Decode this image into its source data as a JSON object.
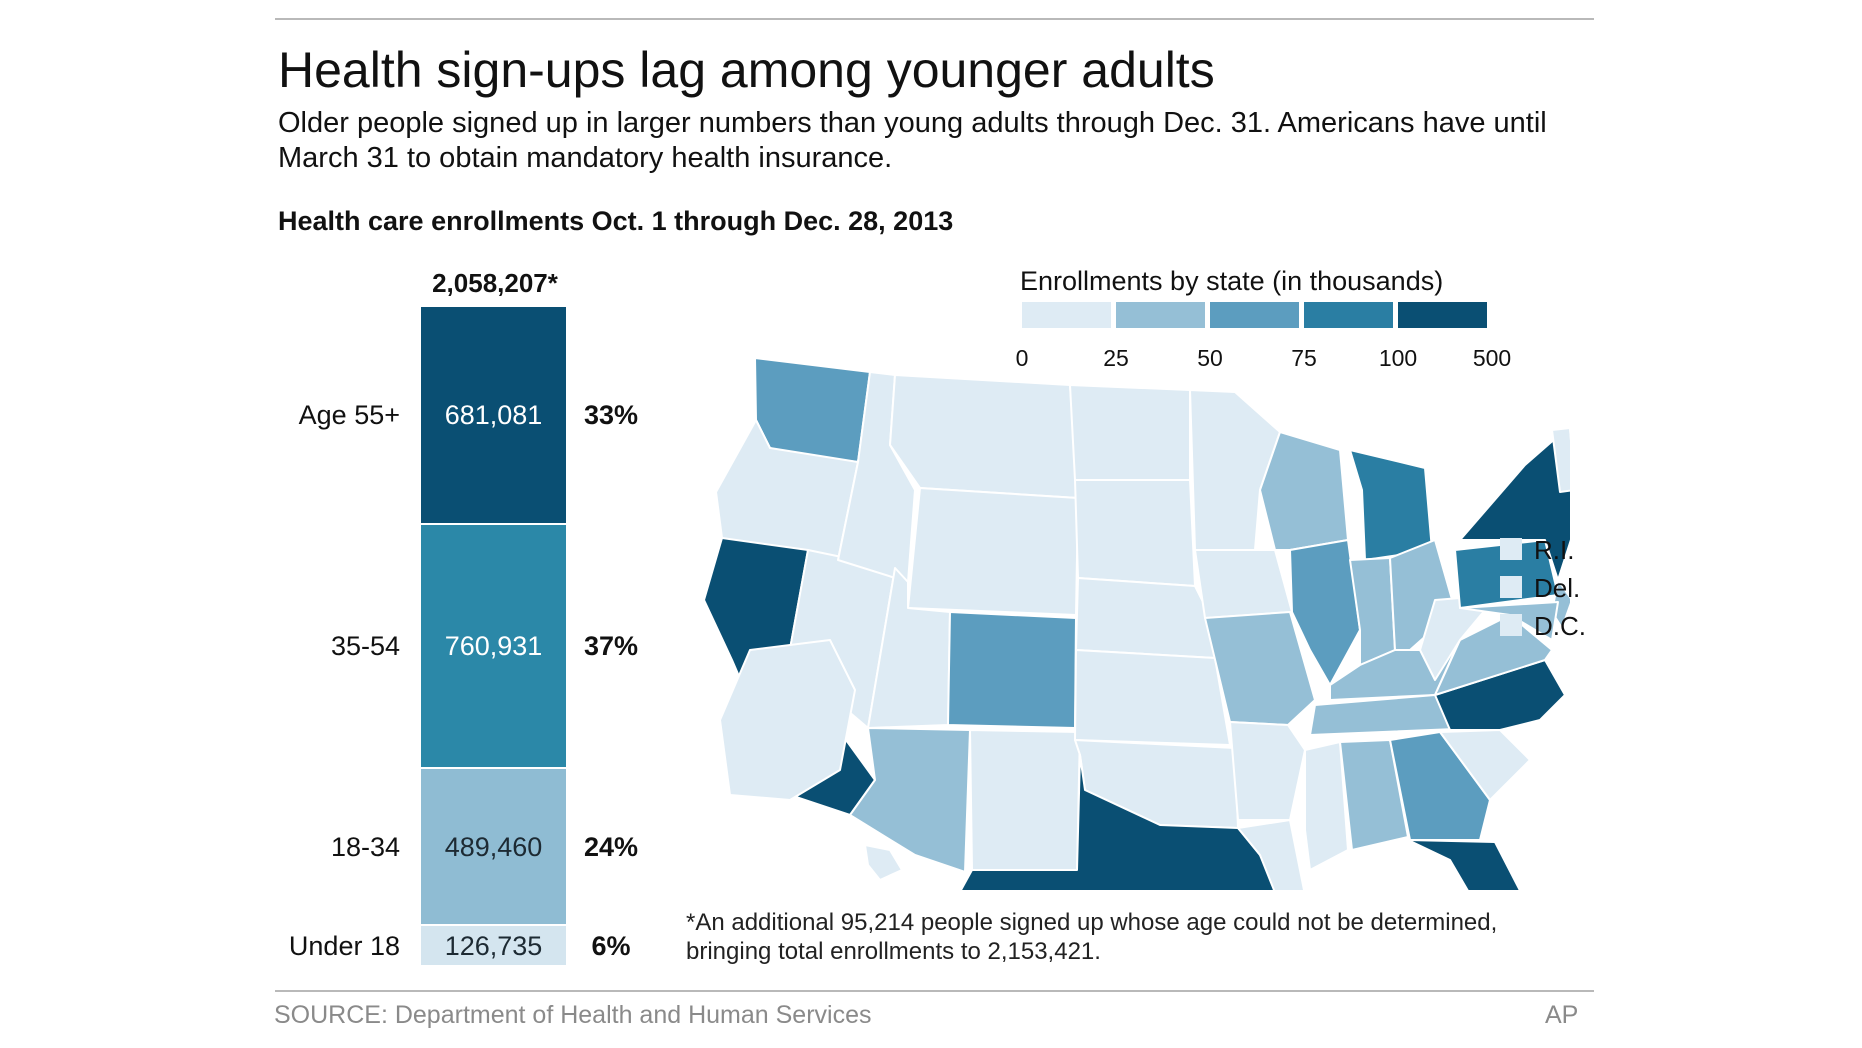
{
  "title": "Health sign-ups lag among younger adults",
  "subtitle": "Older people signed up in larger numbers than young adults through Dec. 31. Americans have until March 31 to obtain mandatory health insurance.",
  "chart_data": [
    {
      "type": "bar",
      "title": "Health care enrollments Oct. 1 through Dec. 28, 2013",
      "stacked": true,
      "total_label": "2,058,207*",
      "total": 2058207,
      "categories": [
        "Age 55+",
        "35-54",
        "18-34",
        "Under 18"
      ],
      "values": [
        681081,
        760931,
        489460,
        126735
      ],
      "value_labels": [
        "681,081",
        "760,931",
        "489,460",
        "126,735"
      ],
      "percent_labels": [
        "33%",
        "37%",
        "24%",
        "6%"
      ],
      "colors": [
        "#0a4f73",
        "#2b88a8",
        "#8fbcd3",
        "#d4e5ef"
      ]
    },
    {
      "type": "heatmap",
      "title": "Enrollments by state (in thousands)",
      "legend": {
        "ticks": [
          "0",
          "25",
          "50",
          "75",
          "100",
          "500"
        ],
        "colors": [
          "#deebf4",
          "#95bfd6",
          "#5c9dbf",
          "#2a7ea3",
          "#0a4f73"
        ]
      },
      "small_states": [
        "R.I.",
        "Del.",
        "D.C."
      ],
      "small_state_bin": 0,
      "state_bins": {
        "WA": 2,
        "OR": 0,
        "CA": 4,
        "NV": 0,
        "ID": 0,
        "MT": 0,
        "WY": 0,
        "UT": 0,
        "AZ": 1,
        "CO": 2,
        "NM": 0,
        "TX": 4,
        "ND": 0,
        "SD": 0,
        "NE": 0,
        "KS": 0,
        "OK": 0,
        "MN": 0,
        "IA": 0,
        "MO": 1,
        "AR": 0,
        "LA": 0,
        "WI": 1,
        "IL": 2,
        "MI": 3,
        "IN": 1,
        "OH": 1,
        "KY": 1,
        "TN": 1,
        "MS": 0,
        "AL": 1,
        "GA": 2,
        "FL": 4,
        "SC": 0,
        "NC": 4,
        "VA": 1,
        "WV": 0,
        "PA": 3,
        "NY": 4,
        "NJ": 1,
        "MD": 1,
        "CT": 1,
        "MA": 0,
        "VT": 0,
        "NH": 0,
        "ME": 0,
        "AK": 0,
        "HI": 0
      }
    }
  ],
  "footnote": "*An additional 95,214 people signed up whose age could not be determined, bringing total enrollments to 2,153,421.",
  "source": "SOURCE: Department of Health and Human Services",
  "credit": "AP"
}
